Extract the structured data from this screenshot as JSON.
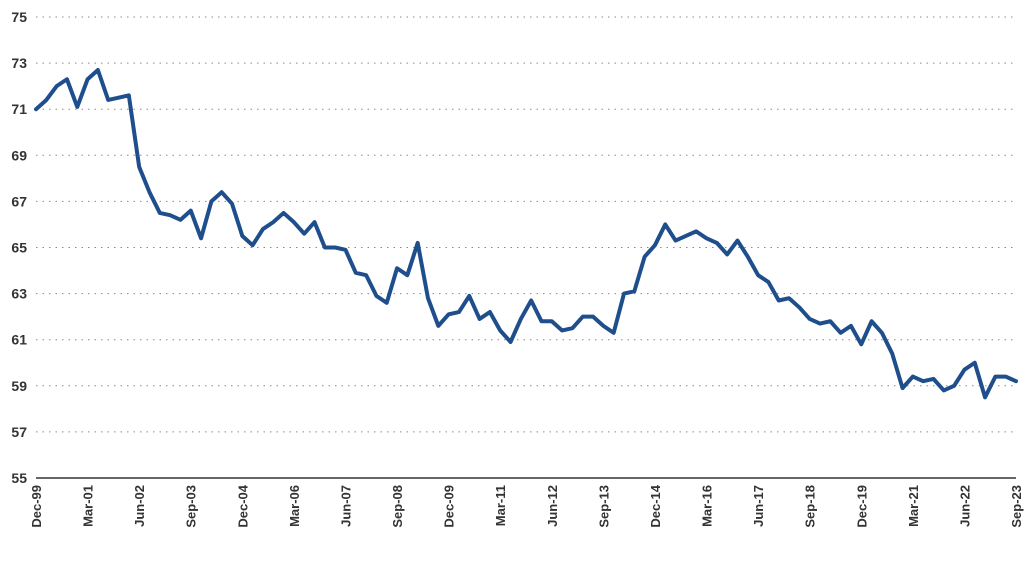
{
  "chart_data": {
    "type": "line",
    "title": "",
    "xlabel": "",
    "ylabel": "",
    "ylim": [
      55,
      75
    ],
    "y_ticks": [
      55,
      57,
      59,
      61,
      63,
      65,
      67,
      69,
      71,
      73,
      75
    ],
    "x_ticks": [
      "Dec-99",
      "Mar-01",
      "Jun-02",
      "Sep-03",
      "Dec-04",
      "Mar-06",
      "Jun-07",
      "Sep-08",
      "Dec-09",
      "Mar-11",
      "Jun-12",
      "Sep-13",
      "Dec-14",
      "Mar-16",
      "Jun-17",
      "Sep-18",
      "Dec-19",
      "Mar-21",
      "Jun-22",
      "Sep-23"
    ],
    "grid": "horizontal dotted",
    "line_color": "#1f4e8c",
    "series": [
      {
        "values": [
          71.0,
          71.4,
          72.0,
          72.3,
          71.1,
          72.3,
          72.7,
          71.4,
          71.5,
          71.6,
          68.5,
          67.4,
          66.5,
          66.4,
          66.2,
          66.6,
          65.4,
          67.0,
          67.4,
          66.9,
          65.5,
          65.1,
          65.8,
          66.1,
          66.5,
          66.1,
          65.6,
          66.1,
          65.0,
          65.0,
          64.9,
          63.9,
          63.8,
          62.9,
          62.6,
          64.1,
          63.8,
          65.2,
          62.8,
          61.6,
          62.1,
          62.2,
          62.9,
          61.9,
          62.2,
          61.4,
          60.9,
          61.9,
          62.7,
          61.8,
          61.8,
          61.4,
          61.5,
          62.0,
          62.0,
          61.6,
          61.3,
          63.0,
          63.1,
          64.6,
          65.1,
          66.0,
          65.3,
          65.5,
          65.7,
          65.4,
          65.2,
          64.7,
          65.3,
          64.6,
          63.8,
          63.5,
          62.7,
          62.8,
          62.4,
          61.9,
          61.7,
          61.8,
          61.3,
          61.6,
          60.8,
          61.8,
          61.3,
          60.4,
          58.9,
          59.4,
          59.2,
          59.3,
          58.8,
          59.0,
          59.7,
          60.0,
          58.5,
          59.4,
          59.4,
          59.2
        ]
      }
    ]
  }
}
